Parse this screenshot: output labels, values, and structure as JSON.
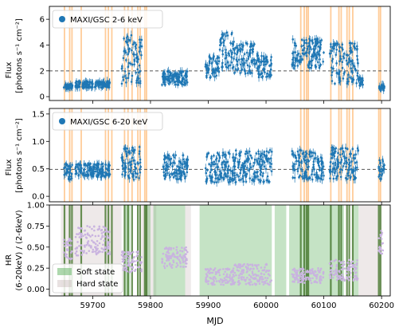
{
  "figure": {
    "xlabel": "MJD"
  },
  "colors": {
    "data": "#1f77b4",
    "hr": "#c9b3e0",
    "burst": "#ffbf80",
    "soft": "#4ba84b",
    "hard": "#b39a9a",
    "dashed": "#555555"
  },
  "chart_data": [
    {
      "type": "scatter",
      "panel": "top",
      "legend": [
        "MAXI/GSC 2-6 keV"
      ],
      "ylabel_line1": "Flux",
      "ylabel_line2": "[photons s⁻¹ cm⁻²]",
      "ylim": [
        -0.3,
        7.0
      ],
      "yticks": [
        0,
        2,
        4,
        6
      ],
      "reference_line": 2.0,
      "segments": [
        {
          "x0": 59650,
          "x1": 59665,
          "lo": 0.6,
          "hi": 1.0
        },
        {
          "x0": 59670,
          "x1": 59730,
          "lo": 0.7,
          "hi": 1.2
        },
        {
          "x0": 59750,
          "x1": 59785,
          "lo": 1.0,
          "hi": 4.8
        },
        {
          "x0": 59820,
          "x1": 59865,
          "lo": 0.9,
          "hi": 2.0
        },
        {
          "x0": 59895,
          "x1": 59920,
          "lo": 1.4,
          "hi": 3.2
        },
        {
          "x0": 59920,
          "x1": 59945,
          "lo": 2.2,
          "hi": 5.0
        },
        {
          "x0": 59945,
          "x1": 59985,
          "lo": 1.8,
          "hi": 4.2
        },
        {
          "x0": 59985,
          "x1": 60010,
          "lo": 1.5,
          "hi": 3.2
        },
        {
          "x0": 60045,
          "x1": 60100,
          "lo": 2.2,
          "hi": 4.5
        },
        {
          "x0": 60110,
          "x1": 60160,
          "lo": 1.0,
          "hi": 4.2
        },
        {
          "x0": 60160,
          "x1": 60168,
          "lo": 0.8,
          "hi": 1.5
        },
        {
          "x0": 60195,
          "x1": 60205,
          "lo": 0.4,
          "hi": 0.9
        }
      ]
    },
    {
      "type": "scatter",
      "panel": "middle",
      "legend": [
        "MAXI/GSC 6-20 keV"
      ],
      "ylabel_line1": "Flux",
      "ylabel_line2": "[photons s⁻¹ cm⁻²]",
      "ylim": [
        -0.1,
        1.6
      ],
      "yticks": [
        0.0,
        0.5,
        1.0,
        1.5
      ],
      "reference_line": 0.49,
      "segments": [
        {
          "x0": 59650,
          "x1": 59665,
          "lo": 0.3,
          "hi": 0.6
        },
        {
          "x0": 59670,
          "x1": 59730,
          "lo": 0.35,
          "hi": 0.6
        },
        {
          "x0": 59750,
          "x1": 59785,
          "lo": 0.3,
          "hi": 0.9
        },
        {
          "x0": 59820,
          "x1": 59865,
          "lo": 0.3,
          "hi": 0.75
        },
        {
          "x0": 59895,
          "x1": 59945,
          "lo": 0.25,
          "hi": 0.8
        },
        {
          "x0": 59945,
          "x1": 60010,
          "lo": 0.25,
          "hi": 0.85
        },
        {
          "x0": 60045,
          "x1": 60100,
          "lo": 0.3,
          "hi": 0.85
        },
        {
          "x0": 60110,
          "x1": 60160,
          "lo": 0.3,
          "hi": 0.9
        },
        {
          "x0": 60195,
          "x1": 60205,
          "lo": 0.3,
          "hi": 0.7
        }
      ]
    },
    {
      "type": "scatter",
      "panel": "bottom",
      "legend": [
        "Soft state",
        "Hard state"
      ],
      "ylabel_line1": "HR",
      "ylabel_line2": "(6-20keV) / (2-6keV)",
      "ylim": [
        -0.08,
        1.0
      ],
      "yticks": [
        0.0,
        0.25,
        0.5,
        0.75,
        1.0
      ],
      "segments": [
        {
          "x0": 59650,
          "x1": 59665,
          "lo": 0.35,
          "hi": 0.6
        },
        {
          "x0": 59670,
          "x1": 59730,
          "lo": 0.4,
          "hi": 0.75
        },
        {
          "x0": 59750,
          "x1": 59785,
          "lo": 0.2,
          "hi": 0.45
        },
        {
          "x0": 59820,
          "x1": 59865,
          "lo": 0.25,
          "hi": 0.5
        },
        {
          "x0": 59895,
          "x1": 59945,
          "lo": 0.05,
          "hi": 0.25
        },
        {
          "x0": 59945,
          "x1": 60010,
          "lo": 0.05,
          "hi": 0.3
        },
        {
          "x0": 60045,
          "x1": 60100,
          "lo": 0.07,
          "hi": 0.25
        },
        {
          "x0": 60110,
          "x1": 60160,
          "lo": 0.1,
          "hi": 0.35
        },
        {
          "x0": 60195,
          "x1": 60205,
          "lo": 0.4,
          "hi": 0.7
        }
      ],
      "hard_regions": [
        [
          59645,
          59750
        ],
        [
          59785,
          59810
        ],
        [
          59860,
          59870
        ],
        [
          60160,
          60200
        ]
      ],
      "soft_regions": [
        [
          59755,
          59765
        ],
        [
          59790,
          59800
        ],
        [
          59805,
          59860
        ],
        [
          59885,
          60010
        ],
        [
          60015,
          60035
        ],
        [
          60040,
          60135
        ],
        [
          60150,
          60160
        ]
      ]
    }
  ],
  "x_axis": {
    "xlim": [
      59625,
      60215
    ],
    "ticks": [
      59700,
      59800,
      59900,
      60000,
      60100,
      60200
    ]
  },
  "burst_lines": [
    59651,
    59660,
    59664,
    59680,
    59722,
    59727,
    59733,
    59755,
    59761,
    59768,
    59778,
    59782,
    59790,
    59793,
    60060,
    60066,
    60070,
    60073,
    60112,
    60126,
    60130,
    60140,
    60144,
    60150,
    60195,
    60198
  ]
}
